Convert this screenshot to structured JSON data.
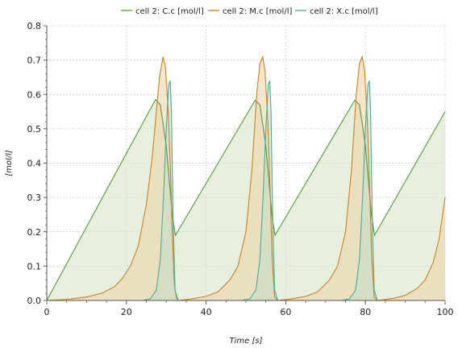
{
  "chart_data": {
    "type": "area",
    "xlabel": "Time [s]",
    "ylabel": "[mol/l]",
    "xlim": [
      0,
      100
    ],
    "ylim": [
      0,
      0.8
    ],
    "x_ticks": [
      0,
      20,
      40,
      60,
      80,
      100
    ],
    "y_ticks": [
      0.0,
      0.1,
      0.2,
      0.3,
      0.4,
      0.5,
      0.6,
      0.7,
      0.8
    ],
    "x_tick_labels": [
      "0",
      "20",
      "40",
      "60",
      "80",
      "100"
    ],
    "y_tick_labels": [
      "0.0",
      "0.1",
      "0.2",
      "0.3",
      "0.4",
      "0.5",
      "0.6",
      "0.7",
      "0.8"
    ],
    "grid": true,
    "legend_position": "top",
    "series": [
      {
        "name": "cell 2: C.c [mol/l]",
        "color": "#5a9a3a",
        "fill": "#d5e6c4",
        "points": [
          [
            0,
            0.0
          ],
          [
            27.3,
            0.585
          ],
          [
            28.5,
            0.57
          ],
          [
            30,
            0.45
          ],
          [
            31.5,
            0.25
          ],
          [
            32.3,
            0.19
          ],
          [
            52.3,
            0.583
          ],
          [
            53.5,
            0.57
          ],
          [
            55,
            0.45
          ],
          [
            56.5,
            0.25
          ],
          [
            57.3,
            0.19
          ],
          [
            77.3,
            0.583
          ],
          [
            78.5,
            0.57
          ],
          [
            80,
            0.45
          ],
          [
            81.5,
            0.25
          ],
          [
            82.3,
            0.19
          ],
          [
            100,
            0.55
          ]
        ]
      },
      {
        "name": "cell 2: M.c [mol/l]",
        "color": "#d08020",
        "fill": "#ecd4ac",
        "points": [
          [
            0,
            0.0
          ],
          [
            5,
            0.003
          ],
          [
            10,
            0.01
          ],
          [
            14,
            0.022
          ],
          [
            17,
            0.04
          ],
          [
            19,
            0.065
          ],
          [
            21,
            0.1
          ],
          [
            23,
            0.16
          ],
          [
            25,
            0.28
          ],
          [
            26.5,
            0.42
          ],
          [
            27.5,
            0.55
          ],
          [
            28.3,
            0.65
          ],
          [
            29.2,
            0.71
          ],
          [
            29.8,
            0.68
          ],
          [
            30.5,
            0.55
          ],
          [
            31,
            0.4
          ],
          [
            31.5,
            0.2
          ],
          [
            32,
            0.05
          ],
          [
            32.5,
            0.01
          ],
          [
            33,
            0.0
          ],
          [
            36,
            0.004
          ],
          [
            40,
            0.012
          ],
          [
            43,
            0.025
          ],
          [
            46,
            0.06
          ],
          [
            48,
            0.1
          ],
          [
            50,
            0.2
          ],
          [
            51.5,
            0.38
          ],
          [
            52.7,
            0.6
          ],
          [
            53.5,
            0.69
          ],
          [
            54.2,
            0.71
          ],
          [
            54.8,
            0.67
          ],
          [
            55.5,
            0.52
          ],
          [
            56,
            0.35
          ],
          [
            56.6,
            0.12
          ],
          [
            57.2,
            0.01
          ],
          [
            58,
            0.0
          ],
          [
            61,
            0.004
          ],
          [
            65,
            0.012
          ],
          [
            68,
            0.025
          ],
          [
            71,
            0.06
          ],
          [
            73,
            0.1
          ],
          [
            75,
            0.2
          ],
          [
            76.5,
            0.38
          ],
          [
            77.7,
            0.6
          ],
          [
            78.5,
            0.69
          ],
          [
            79.2,
            0.71
          ],
          [
            79.8,
            0.67
          ],
          [
            80.5,
            0.52
          ],
          [
            81,
            0.35
          ],
          [
            81.6,
            0.12
          ],
          [
            82.2,
            0.01
          ],
          [
            83,
            0.0
          ],
          [
            87,
            0.006
          ],
          [
            90,
            0.015
          ],
          [
            93,
            0.035
          ],
          [
            95,
            0.06
          ],
          [
            97,
            0.11
          ],
          [
            98.5,
            0.18
          ],
          [
            100,
            0.3
          ]
        ]
      },
      {
        "name": "cell 2: X.c [mol/l]",
        "color": "#4aaa9c",
        "fill": "#c4ddc8",
        "points": [
          [
            0,
            0.0
          ],
          [
            24,
            0.0
          ],
          [
            26,
            0.005
          ],
          [
            27.5,
            0.03
          ],
          [
            28.5,
            0.12
          ],
          [
            29.3,
            0.3
          ],
          [
            30,
            0.5
          ],
          [
            30.6,
            0.63
          ],
          [
            31,
            0.64
          ],
          [
            31.3,
            0.55
          ],
          [
            31.7,
            0.25
          ],
          [
            32.2,
            0.03
          ],
          [
            33,
            0.0
          ],
          [
            49,
            0.0
          ],
          [
            51,
            0.005
          ],
          [
            52.5,
            0.03
          ],
          [
            53.5,
            0.12
          ],
          [
            54.3,
            0.3
          ],
          [
            55,
            0.5
          ],
          [
            55.6,
            0.63
          ],
          [
            56,
            0.64
          ],
          [
            56.3,
            0.55
          ],
          [
            56.7,
            0.25
          ],
          [
            57.2,
            0.03
          ],
          [
            58,
            0.0
          ],
          [
            74,
            0.0
          ],
          [
            76,
            0.005
          ],
          [
            77.5,
            0.03
          ],
          [
            78.5,
            0.12
          ],
          [
            79.3,
            0.3
          ],
          [
            80,
            0.5
          ],
          [
            80.6,
            0.63
          ],
          [
            81,
            0.64
          ],
          [
            81.3,
            0.55
          ],
          [
            81.7,
            0.25
          ],
          [
            82.2,
            0.03
          ],
          [
            83,
            0.0
          ],
          [
            100,
            0.0
          ]
        ]
      }
    ]
  }
}
